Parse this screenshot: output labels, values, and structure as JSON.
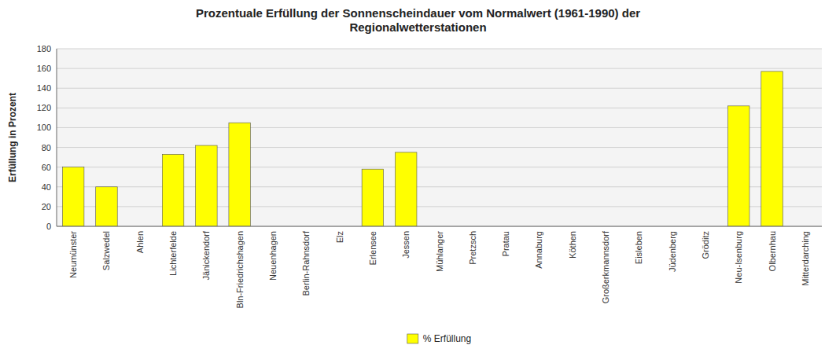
{
  "chart_data": {
    "type": "bar",
    "title": "Prozentuale Erfüllung der Sonnenscheindauer vom Normalwert (1961-1990) der\nRegionalwetterstationen",
    "ylabel": "Erfüllung in Prozent",
    "categories": [
      "Neumünster",
      "Salzwedel",
      "Ahlen",
      "Lichterfelde",
      "Jänickendorf",
      "Bln-Friedrichshagen",
      "Neuenhagen",
      "Berlin-Rahnsdorf",
      "Elz",
      "Erlensee",
      "Jessen",
      "Mühlanger",
      "Pretzsch",
      "Pratau",
      "Annaburg",
      "Köthen",
      "Großerkmannsdorf",
      "Eisleben",
      "Jüdenberg",
      "Gröditz",
      "Neu-Isenburg",
      "Olbernhau",
      "Mitterdarching"
    ],
    "series": [
      {
        "name": "% Erfüllung",
        "color": "#FFFF00",
        "values": [
          60,
          40,
          0,
          73,
          82,
          105,
          0,
          0,
          0,
          58,
          75,
          0,
          0,
          0,
          0,
          0,
          0,
          0,
          0,
          0,
          122,
          157,
          0
        ]
      }
    ],
    "ylim": [
      0,
      180
    ],
    "yticks": [
      0,
      20,
      40,
      60,
      80,
      100,
      120,
      140,
      160,
      180
    ],
    "grid": true,
    "legend": "bottom"
  }
}
